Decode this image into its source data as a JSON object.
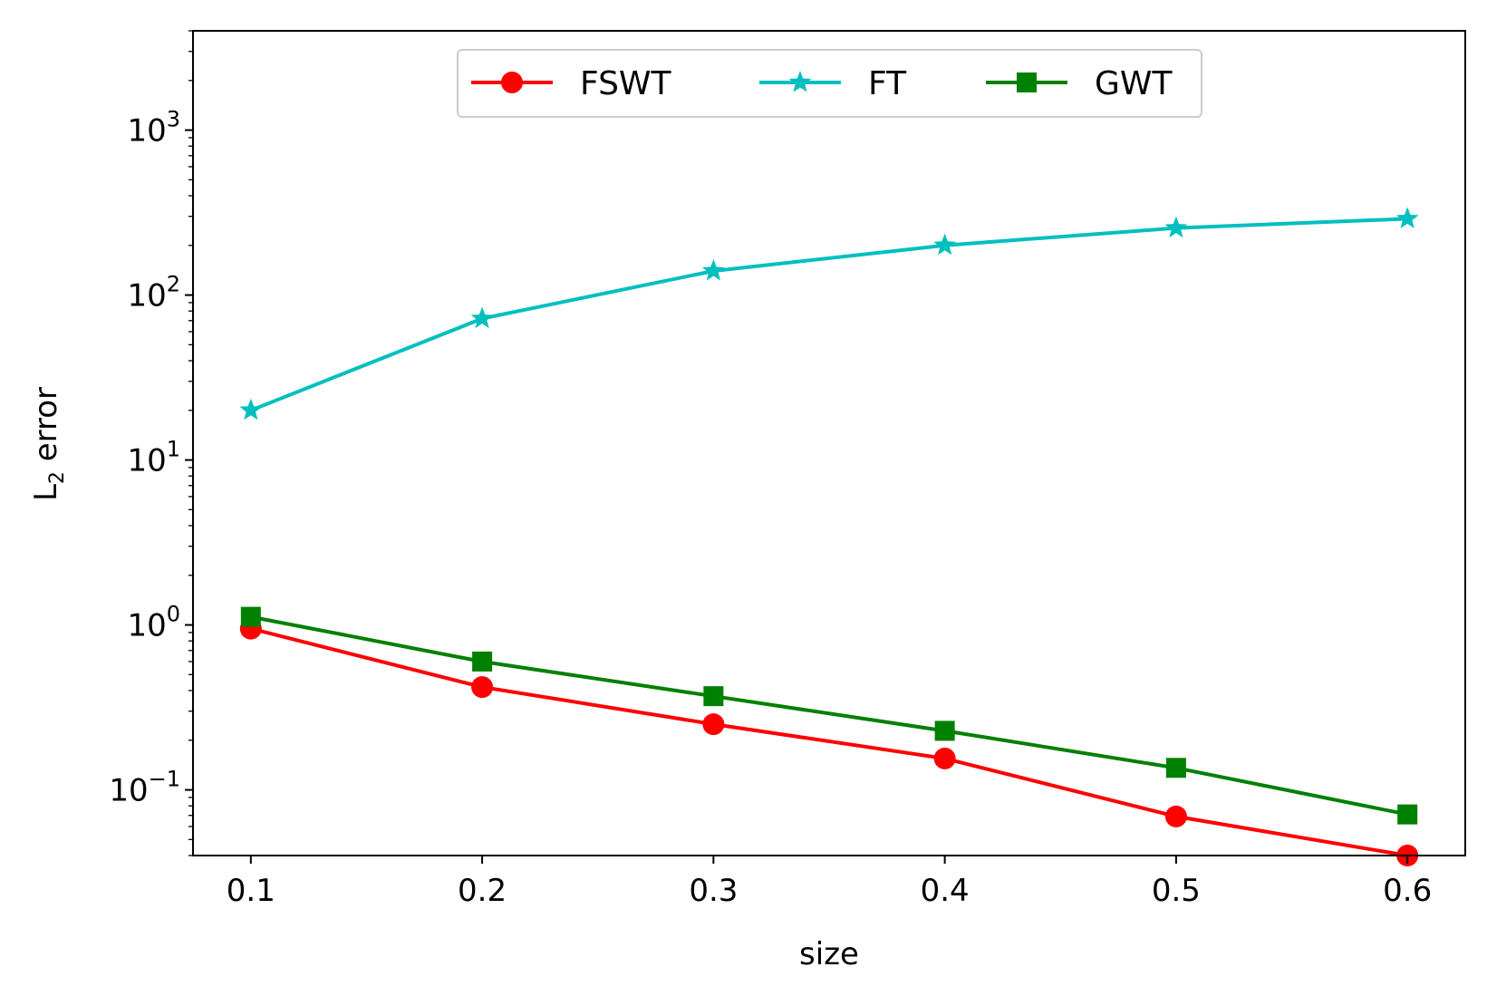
{
  "chart_data": {
    "type": "line",
    "xlabel": "size",
    "ylabel_main": "L",
    "ylabel_sub": "2",
    "ylabel_rest": " error",
    "yscale": "log",
    "xlim": [
      0.075,
      0.625
    ],
    "ylim": [
      0.04,
      4000
    ],
    "x": [
      0.1,
      0.2,
      0.3,
      0.4,
      0.5,
      0.6
    ],
    "xtick_labels": [
      "0.1",
      "0.2",
      "0.3",
      "0.4",
      "0.5",
      "0.6"
    ],
    "ytick_labels": [
      {
        "base": "10",
        "exp": "3"
      },
      {
        "base": "10",
        "exp": "2"
      },
      {
        "base": "10",
        "exp": "1"
      },
      {
        "base": "10",
        "exp": "0"
      },
      {
        "base": "10",
        "exp": "−1"
      }
    ],
    "yticks": [
      1000,
      100,
      10,
      1,
      0.1
    ],
    "legend_position": "top-center",
    "series": [
      {
        "name": "FSWT",
        "color": "#ff0000",
        "marker": "circle",
        "values": [
          0.95,
          0.42,
          0.25,
          0.155,
          0.069,
          0.04
        ]
      },
      {
        "name": "FT",
        "color": "#00bfbf",
        "marker": "star",
        "values": [
          20,
          72,
          140,
          200,
          255,
          290
        ]
      },
      {
        "name": "GWT",
        "color": "#008000",
        "marker": "square",
        "values": [
          1.12,
          0.6,
          0.37,
          0.228,
          0.136,
          0.071
        ]
      }
    ]
  }
}
